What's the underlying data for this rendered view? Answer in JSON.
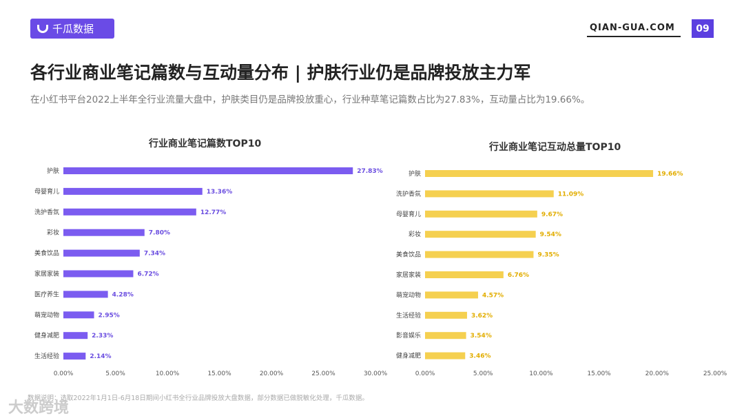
{
  "header": {
    "logo_text": "千瓜数据",
    "site": "QIAN-GUA.COM",
    "page_number": "09"
  },
  "title": "各行业商业笔记篇数与互动量分布 | 护肤行业仍是品牌投放主力军",
  "subtitle": "在小红书平台2022上半年全行业流量大盘中，护肤类目仍是品牌投放重心，行业种草笔记篇数占比为27.83%，互动量占比为19.66%。",
  "footnote": "数据说明：选取2022年1月1日-6月18日期间小红书全行业品牌投放大盘数据，部分数据已做脱敏化处理，千瓜数据。",
  "watermark": "大数跨境",
  "chart_data": [
    {
      "type": "bar",
      "orientation": "horizontal",
      "title": "行业商业笔记篇数TOP10",
      "color": "#7b5cf0",
      "categories": [
        "护肤",
        "母婴育儿",
        "洗护香氛",
        "彩妆",
        "美食饮品",
        "家居家装",
        "医疗养生",
        "萌宠动物",
        "健身减肥",
        "生活经验"
      ],
      "values": [
        27.83,
        13.36,
        12.77,
        7.8,
        7.34,
        6.72,
        4.28,
        2.95,
        2.33,
        2.14
      ],
      "labels": [
        "27.83%",
        "13.36%",
        "12.77%",
        "7.80%",
        "7.34%",
        "6.72%",
        "4.28%",
        "2.95%",
        "2.33%",
        "2.14%"
      ],
      "xlim": [
        0,
        30
      ],
      "ticks": [
        "0.00%",
        "5.00%",
        "10.00%",
        "15.00%",
        "20.00%",
        "25.00%",
        "30.00%"
      ]
    },
    {
      "type": "bar",
      "orientation": "horizontal",
      "title": "行业商业笔记互动总量TOP10",
      "color": "#f5d050",
      "categories": [
        "护肤",
        "洗护香氛",
        "母婴育儿",
        "彩妆",
        "美食饮品",
        "家居家装",
        "萌宠动物",
        "生活经验",
        "影音娱乐",
        "健身减肥"
      ],
      "values": [
        19.66,
        11.09,
        9.67,
        9.54,
        9.35,
        6.76,
        4.57,
        3.62,
        3.54,
        3.46
      ],
      "labels": [
        "19.66%",
        "11.09%",
        "9.67%",
        "9.54%",
        "9.35%",
        "6.76%",
        "4.57%",
        "3.62%",
        "3.54%",
        "3.46%"
      ],
      "xlim": [
        0,
        25
      ],
      "ticks": [
        "0.00%",
        "5.00%",
        "10.00%",
        "15.00%",
        "20.00%",
        "25.00%"
      ]
    }
  ]
}
